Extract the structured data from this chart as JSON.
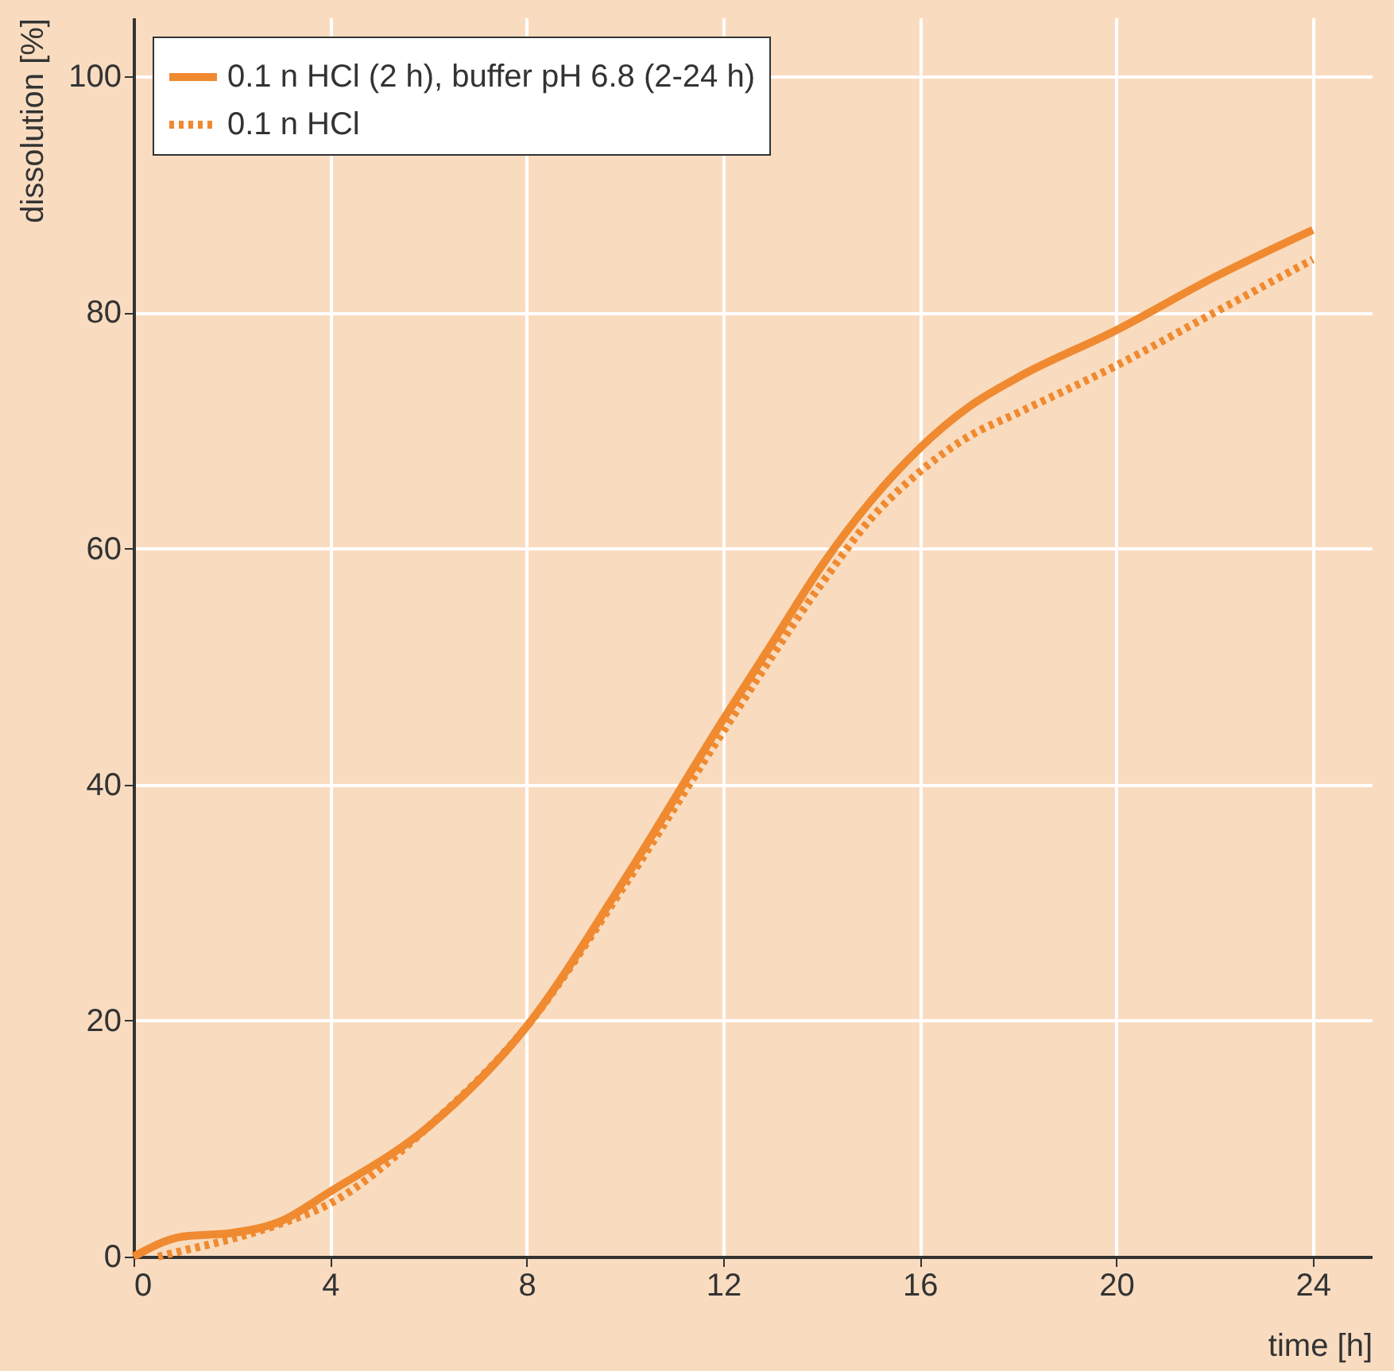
{
  "chart_data": {
    "type": "line",
    "xlabel": "time [h]",
    "ylabel": "dissolution [%]",
    "xlim": [
      0,
      25.2
    ],
    "ylim": [
      0,
      105
    ],
    "xticks": [
      0,
      4,
      8,
      12,
      16,
      20,
      24
    ],
    "yticks": [
      0,
      20,
      40,
      60,
      80,
      100
    ],
    "grid": true,
    "legend": "top left",
    "marker": "none",
    "series": [
      {
        "name": "0.1 n HCl (2 h), buffer pH 6.8 (2-24 h)",
        "color": "#f08a30",
        "line_style": "solid",
        "x": [
          0,
          1,
          2,
          3,
          4,
          6,
          8,
          10,
          12,
          13,
          14,
          15,
          16,
          17,
          18,
          20,
          22,
          24
        ],
        "values": [
          0,
          1.7,
          2,
          3,
          5.5,
          11,
          19.5,
          32,
          45.5,
          52,
          58.5,
          64,
          68.5,
          72,
          74.5,
          78.5,
          83,
          87
        ]
      },
      {
        "name": "0.1 n HCl",
        "color": "#f08a30",
        "line_style": "dotted",
        "x": [
          0.5,
          1,
          2,
          3,
          4,
          6,
          8,
          10,
          12,
          14,
          15,
          16,
          17,
          18,
          20,
          22,
          24
        ],
        "values": [
          0,
          0.5,
          1.5,
          2.8,
          4.5,
          11,
          19.5,
          31.5,
          44.5,
          57,
          62.5,
          66.5,
          69.5,
          71.5,
          75.5,
          80,
          84.5
        ]
      }
    ]
  }
}
